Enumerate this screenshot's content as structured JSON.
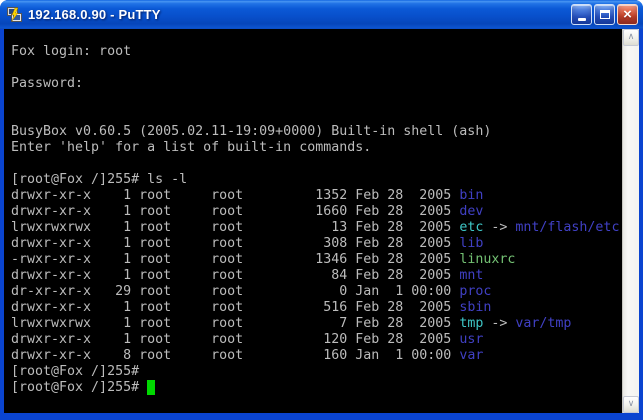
{
  "window": {
    "title": "192.168.0.90 - PuTTY",
    "icon": "putty-two-terminals-icon",
    "controls": {
      "minimize": "minimize-button",
      "maximize": "maximize-button",
      "close": "close-button"
    }
  },
  "scrollbar": {
    "up_glyph": "∧",
    "down_glyph": "∨"
  },
  "terminal": {
    "prompt": "[root@Fox /]255#",
    "colors": {
      "background": "#000000",
      "foreground": "#bcbcbc",
      "directory": "#4040c4",
      "symlink": "#3ec6c6",
      "executable": "#74c274",
      "cursor": "#00d800",
      "titlebar_accent": "#0b59d6"
    },
    "lines": [
      {
        "segments": [
          {
            "text": "Fox login: root"
          }
        ]
      },
      {
        "segments": []
      },
      {
        "segments": [
          {
            "text": "Password:"
          }
        ]
      },
      {
        "segments": []
      },
      {
        "segments": []
      },
      {
        "segments": [
          {
            "text": "BusyBox v0.60.5 (2005.02.11-19:09+0000) Built-in shell (ash)"
          }
        ]
      },
      {
        "segments": [
          {
            "text": "Enter 'help' for a list of built-in commands."
          }
        ]
      },
      {
        "segments": []
      },
      {
        "segments": [
          {
            "text": "[root@Fox /]255# ls -l"
          }
        ]
      },
      {
        "segments": [
          {
            "text": "drwxr-xr-x    1 root     root         1352 Feb 28  2005 "
          },
          {
            "text": "bin",
            "color": "directory"
          }
        ]
      },
      {
        "segments": [
          {
            "text": "drwxr-xr-x    1 root     root         1660 Feb 28  2005 "
          },
          {
            "text": "dev",
            "color": "directory"
          }
        ]
      },
      {
        "segments": [
          {
            "text": "lrwxrwxrwx    1 root     root           13 Feb 28  2005 "
          },
          {
            "text": "etc",
            "color": "symlink"
          },
          {
            "text": " -> "
          },
          {
            "text": "mnt/flash/etc",
            "color": "directory"
          }
        ]
      },
      {
        "segments": [
          {
            "text": "drwxr-xr-x    1 root     root          308 Feb 28  2005 "
          },
          {
            "text": "lib",
            "color": "directory"
          }
        ]
      },
      {
        "segments": [
          {
            "text": "-rwxr-xr-x    1 root     root         1346 Feb 28  2005 "
          },
          {
            "text": "linuxrc",
            "color": "executable"
          }
        ]
      },
      {
        "segments": [
          {
            "text": "drwxr-xr-x    1 root     root           84 Feb 28  2005 "
          },
          {
            "text": "mnt",
            "color": "directory"
          }
        ]
      },
      {
        "segments": [
          {
            "text": "dr-xr-xr-x   29 root     root            0 Jan  1 00:00 "
          },
          {
            "text": "proc",
            "color": "directory"
          }
        ]
      },
      {
        "segments": [
          {
            "text": "drwxr-xr-x    1 root     root          516 Feb 28  2005 "
          },
          {
            "text": "sbin",
            "color": "directory"
          }
        ]
      },
      {
        "segments": [
          {
            "text": "lrwxrwxrwx    1 root     root            7 Feb 28  2005 "
          },
          {
            "text": "tmp",
            "color": "symlink"
          },
          {
            "text": " -> "
          },
          {
            "text": "var/tmp",
            "color": "directory"
          }
        ]
      },
      {
        "segments": [
          {
            "text": "drwxr-xr-x    1 root     root          120 Feb 28  2005 "
          },
          {
            "text": "usr",
            "color": "directory"
          }
        ]
      },
      {
        "segments": [
          {
            "text": "drwxr-xr-x    8 root     root          160 Jan  1 00:00 "
          },
          {
            "text": "var",
            "color": "directory"
          }
        ]
      },
      {
        "segments": [
          {
            "text": "[root@Fox /]255#"
          }
        ]
      },
      {
        "segments": [
          {
            "text": "[root@Fox /]255# "
          },
          {
            "text": " ",
            "color": "cursor"
          }
        ]
      }
    ]
  }
}
